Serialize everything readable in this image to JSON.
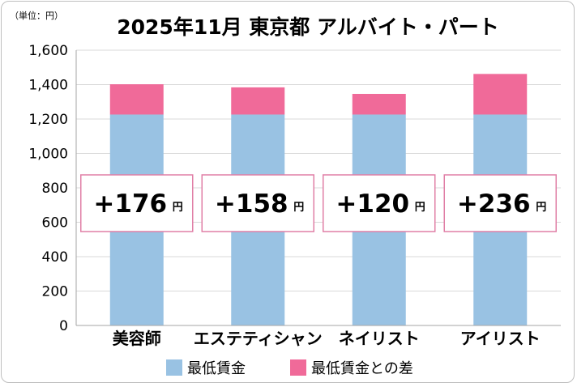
{
  "chart_data": {
    "type": "bar",
    "stacked": true,
    "title": "2025年11月 東京都 アルバイト・パート",
    "unit_label": "（単位：円）",
    "categories": [
      "美容師",
      "エステティシャン",
      "ネイリスト",
      "アイリスト"
    ],
    "series": [
      {
        "name": "最低賃金",
        "values": [
          1226,
          1226,
          1226,
          1226
        ],
        "color": "#99c2e3"
      },
      {
        "name": "最低賃金との差",
        "values": [
          176,
          158,
          120,
          236
        ],
        "color": "#f06a99"
      }
    ],
    "diff_labels": [
      "+176",
      "+158",
      "+120",
      "+236"
    ],
    "diff_unit": "円",
    "ylim": [
      0,
      1600
    ],
    "yticks": [
      "0",
      "200",
      "400",
      "600",
      "800",
      "1,000",
      "1,200",
      "1,400",
      "1,600"
    ],
    "grid": true,
    "legend_position": "bottom",
    "colors": {
      "diff_box_border": "#e07fa6",
      "grid": "#d9d9d9",
      "axis": "#a6a6a6"
    }
  }
}
